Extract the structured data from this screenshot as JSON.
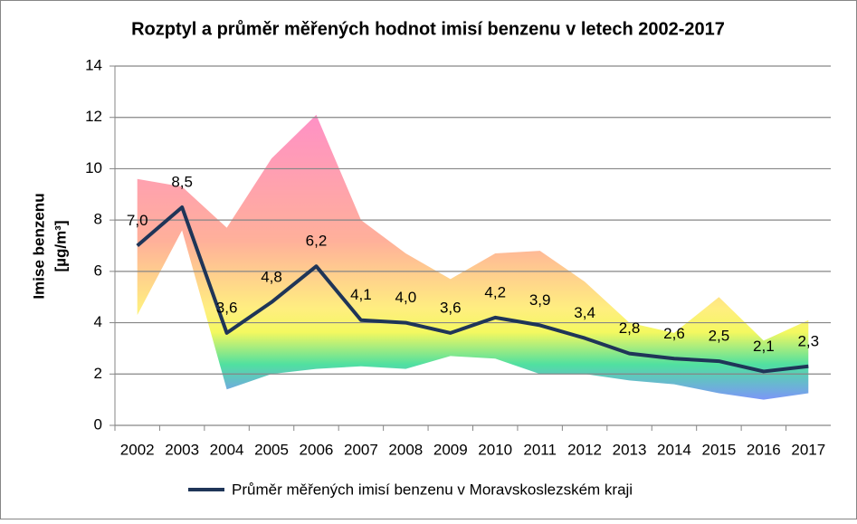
{
  "chart_data": {
    "type": "line",
    "title": "Rozptyl a průměr měřených hodnot imisí benzenu v letech 2002-2017",
    "y_label": "Imise benzenu",
    "y_unit": "[µg/m³]",
    "categories": [
      "2002",
      "2003",
      "2004",
      "2005",
      "2006",
      "2007",
      "2008",
      "2009",
      "2010",
      "2011",
      "2012",
      "2013",
      "2014",
      "2015",
      "2016",
      "2017"
    ],
    "series": [
      {
        "name": "Průměr měřených imisí benzenu v Moravskoslezském kraji",
        "color": "#1f3558",
        "values": [
          7.0,
          8.5,
          3.6,
          4.8,
          6.2,
          4.1,
          4.0,
          3.6,
          4.2,
          3.9,
          3.4,
          2.8,
          2.6,
          2.5,
          2.1,
          2.3
        ],
        "value_labels": [
          "7,0",
          "8,5",
          "3,6",
          "4,8",
          "6,2",
          "4,1",
          "4,0",
          "3,6",
          "4,2",
          "3,9",
          "3,4",
          "2,8",
          "2,6",
          "2,5",
          "2,1",
          "2,3"
        ]
      }
    ],
    "band": {
      "max": [
        9.6,
        9.3,
        7.7,
        10.4,
        12.1,
        8.0,
        6.7,
        5.7,
        6.7,
        6.8,
        5.6,
        4.0,
        3.6,
        5.0,
        3.3,
        4.1
      ],
      "min": [
        4.3,
        7.6,
        1.4,
        2.0,
        2.2,
        2.3,
        2.2,
        2.7,
        2.6,
        2.0,
        2.0,
        1.75,
        1.6,
        1.25,
        1.0,
        1.25
      ]
    },
    "ylim": [
      0,
      14
    ],
    "yticks": [
      0,
      2,
      4,
      6,
      8,
      10,
      12,
      14
    ],
    "grid": true,
    "legend": "bottom"
  }
}
